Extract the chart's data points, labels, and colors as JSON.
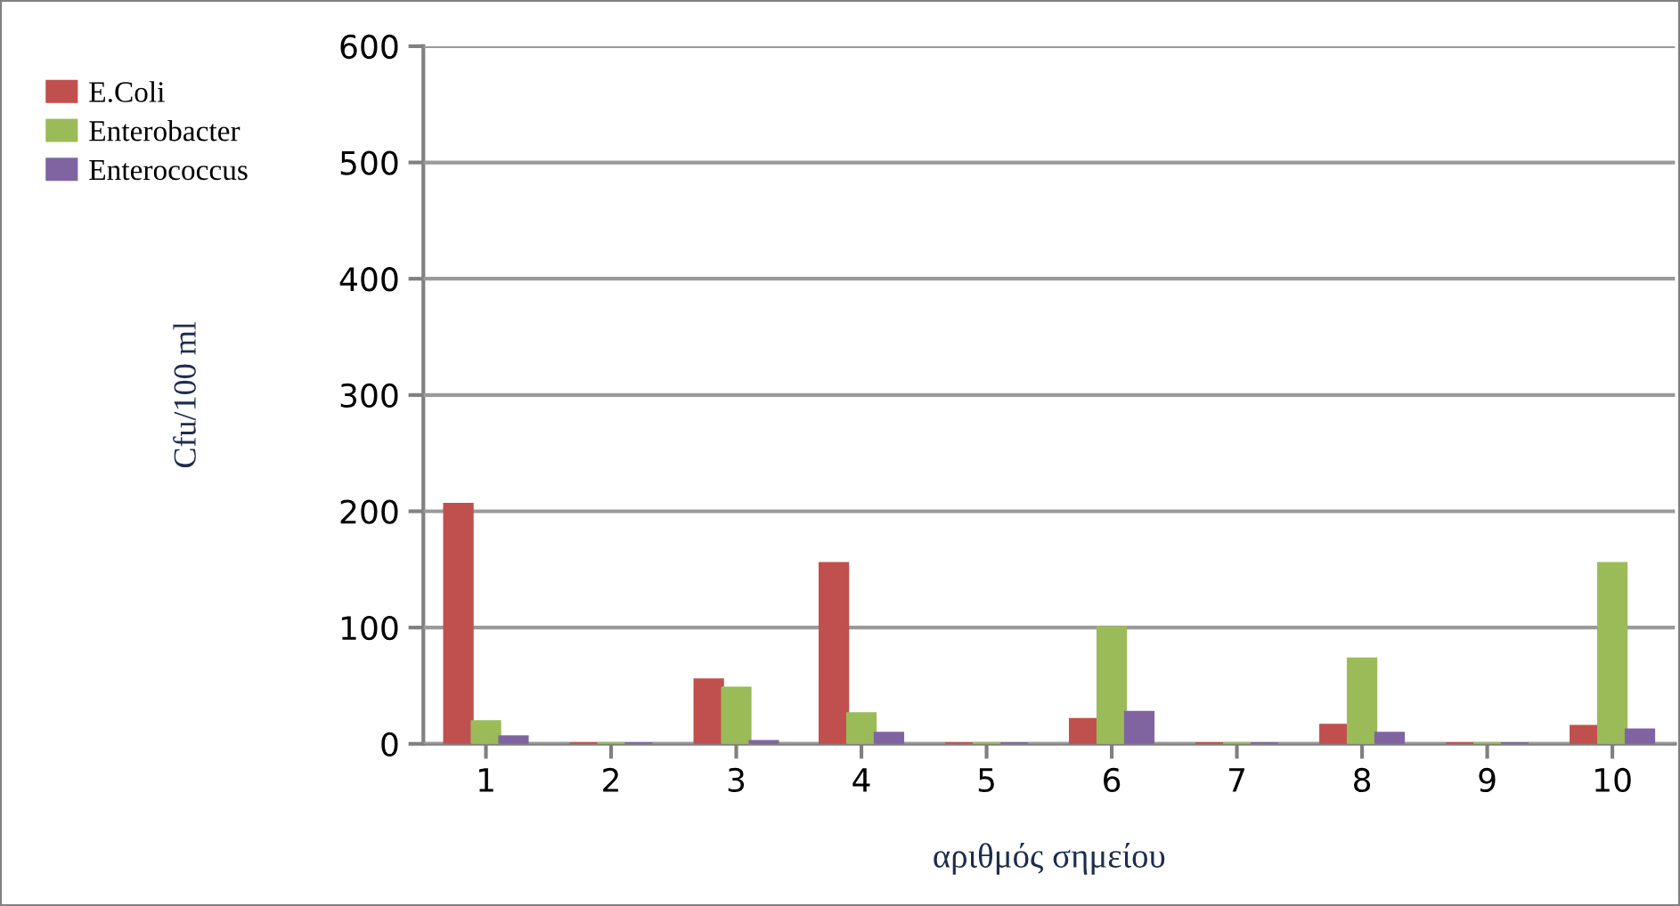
{
  "chart_data": {
    "type": "bar",
    "xlabel": "αριθμός σημείου",
    "ylabel": "Cfu/100 ml",
    "categories": [
      "1",
      "2",
      "3",
      "4",
      "5",
      "6",
      "7",
      "8",
      "9",
      "10"
    ],
    "series": [
      {
        "name": "E.Coli",
        "color": "#c0504d",
        "values": [
          206,
          0,
          55,
          155,
          0,
          21,
          0,
          16,
          0,
          15
        ]
      },
      {
        "name": "Enterobacter",
        "color": "#9bbb59",
        "values": [
          19,
          0,
          48,
          26,
          0,
          100,
          0,
          73,
          0,
          155
        ]
      },
      {
        "name": "Enterococcus",
        "color": "#8064a2",
        "values": [
          6,
          0,
          2,
          9,
          0,
          27,
          0,
          9,
          0,
          12
        ]
      }
    ],
    "ylim": [
      0,
      600
    ],
    "yticks": [
      0,
      100,
      200,
      300,
      400,
      500,
      600
    ],
    "grid": "y",
    "legend": "top left"
  }
}
